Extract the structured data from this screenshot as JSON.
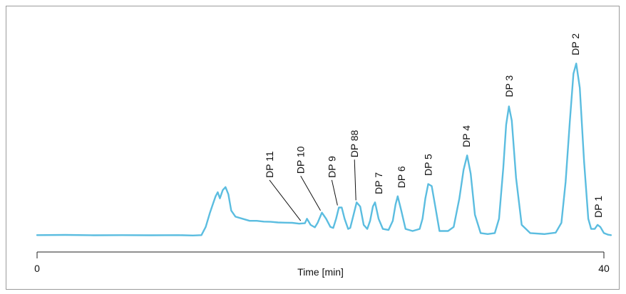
{
  "chart_data": {
    "type": "line",
    "title": "",
    "xlabel": "Time [min]",
    "ylabel": "",
    "xlim": [
      0,
      40
    ],
    "ylim": [
      0,
      100
    ],
    "x_ticks": [
      0,
      40
    ],
    "x_tick_labels": [
      "0",
      "40"
    ],
    "grid": false,
    "colors": {
      "line": "#5bbde0",
      "axis": "#222222",
      "leader": "#111111"
    },
    "series": [
      {
        "values_xy": [
          [
            0.0,
            2.0
          ],
          [
            2.0,
            2.1
          ],
          [
            4.0,
            1.9
          ],
          [
            6.0,
            2.0
          ],
          [
            8.0,
            1.9
          ],
          [
            10.0,
            2.0
          ],
          [
            11.0,
            1.8
          ],
          [
            11.6,
            2.0
          ],
          [
            11.9,
            6.0
          ],
          [
            12.2,
            13.0
          ],
          [
            12.4,
            17.0
          ],
          [
            12.6,
            21.0
          ],
          [
            12.75,
            23.0
          ],
          [
            12.9,
            20.0
          ],
          [
            13.1,
            24.0
          ],
          [
            13.3,
            25.5
          ],
          [
            13.5,
            22.0
          ],
          [
            13.7,
            14.0
          ],
          [
            14.0,
            11.0
          ],
          [
            14.5,
            10.0
          ],
          [
            15.0,
            9.0
          ],
          [
            15.5,
            9.0
          ],
          [
            16.0,
            8.6
          ],
          [
            16.5,
            8.5
          ],
          [
            17.0,
            8.2
          ],
          [
            17.5,
            8.1
          ],
          [
            18.0,
            8.0
          ],
          [
            18.5,
            7.6
          ],
          [
            18.9,
            7.8
          ],
          [
            19.05,
            10.0
          ],
          [
            19.3,
            7.0
          ],
          [
            19.6,
            5.8
          ],
          [
            19.8,
            8.0
          ],
          [
            20.1,
            13.0
          ],
          [
            20.4,
            10.0
          ],
          [
            20.7,
            6.0
          ],
          [
            20.9,
            5.5
          ],
          [
            21.1,
            10.0
          ],
          [
            21.3,
            15.5
          ],
          [
            21.5,
            15.5
          ],
          [
            21.7,
            10.0
          ],
          [
            21.95,
            5.0
          ],
          [
            22.1,
            5.5
          ],
          [
            22.3,
            11.0
          ],
          [
            22.55,
            18.0
          ],
          [
            22.8,
            16.0
          ],
          [
            23.05,
            7.0
          ],
          [
            23.3,
            5.0
          ],
          [
            23.5,
            9.0
          ],
          [
            23.7,
            16.0
          ],
          [
            23.85,
            18.0
          ],
          [
            24.1,
            10.0
          ],
          [
            24.4,
            5.0
          ],
          [
            24.8,
            4.5
          ],
          [
            25.1,
            9.0
          ],
          [
            25.3,
            17.0
          ],
          [
            25.45,
            21.0
          ],
          [
            25.7,
            14.0
          ],
          [
            26.0,
            5.0
          ],
          [
            26.5,
            4.0
          ],
          [
            27.0,
            5.0
          ],
          [
            27.2,
            10.0
          ],
          [
            27.4,
            20.0
          ],
          [
            27.6,
            27.0
          ],
          [
            27.85,
            26.0
          ],
          [
            28.1,
            16.0
          ],
          [
            28.4,
            4.0
          ],
          [
            29.0,
            4.0
          ],
          [
            29.4,
            6.0
          ],
          [
            29.8,
            20.0
          ],
          [
            30.1,
            34.0
          ],
          [
            30.35,
            41.0
          ],
          [
            30.6,
            32.0
          ],
          [
            30.9,
            12.0
          ],
          [
            31.3,
            3.0
          ],
          [
            31.8,
            2.5
          ],
          [
            32.3,
            3.0
          ],
          [
            32.6,
            10.0
          ],
          [
            32.9,
            35.0
          ],
          [
            33.1,
            56.0
          ],
          [
            33.3,
            65.0
          ],
          [
            33.5,
            58.0
          ],
          [
            33.8,
            30.0
          ],
          [
            34.2,
            7.0
          ],
          [
            34.8,
            3.0
          ],
          [
            35.8,
            2.5
          ],
          [
            36.6,
            3.2
          ],
          [
            37.0,
            8.0
          ],
          [
            37.3,
            28.0
          ],
          [
            37.6,
            58.0
          ],
          [
            37.85,
            81.0
          ],
          [
            38.05,
            86.0
          ],
          [
            38.3,
            74.0
          ],
          [
            38.6,
            38.0
          ],
          [
            38.9,
            10.0
          ],
          [
            39.1,
            5.0
          ],
          [
            39.35,
            5.0
          ],
          [
            39.55,
            7.0
          ],
          [
            39.75,
            6.0
          ],
          [
            40.0,
            3.0
          ],
          [
            40.3,
            2.2
          ],
          [
            40.5,
            2.0
          ]
        ]
      }
    ],
    "annotations": [
      {
        "text": "DP 11",
        "x": 18.6,
        "y": 8.0,
        "label_x": 16.4,
        "label_y": 30.0,
        "leader": true
      },
      {
        "text": "DP 10",
        "x": 20.0,
        "y": 13.0,
        "label_x": 18.6,
        "label_y": 32.0,
        "leader": true
      },
      {
        "text": "DP 9",
        "x": 21.2,
        "y": 15.5,
        "label_x": 20.8,
        "label_y": 30.0,
        "leader": true
      },
      {
        "text": "DP 88",
        "x": 22.5,
        "y": 18.0,
        "label_x": 22.4,
        "label_y": 40.0,
        "leader": true
      },
      {
        "text": "DP 7",
        "x": 23.85,
        "y": 18.0,
        "label_x": 24.1,
        "label_y": 22.0,
        "leader": false
      },
      {
        "text": "DP 6",
        "x": 25.45,
        "y": 21.0,
        "label_x": 25.7,
        "label_y": 25.0,
        "leader": false
      },
      {
        "text": "DP 5",
        "x": 27.6,
        "y": 27.0,
        "label_x": 27.6,
        "label_y": 31.0,
        "leader": false
      },
      {
        "text": "DP 4",
        "x": 30.35,
        "y": 41.0,
        "label_x": 30.3,
        "label_y": 45.0,
        "leader": false
      },
      {
        "text": "DP 3",
        "x": 33.3,
        "y": 65.0,
        "label_x": 33.3,
        "label_y": 69.5,
        "leader": false
      },
      {
        "text": "DP 2",
        "x": 38.05,
        "y": 86.0,
        "label_x": 38.0,
        "label_y": 90.0,
        "leader": false
      },
      {
        "text": "DP 1",
        "x": 39.6,
        "y": 7.0,
        "label_x": 39.6,
        "label_y": 10.5,
        "leader": false
      }
    ]
  }
}
